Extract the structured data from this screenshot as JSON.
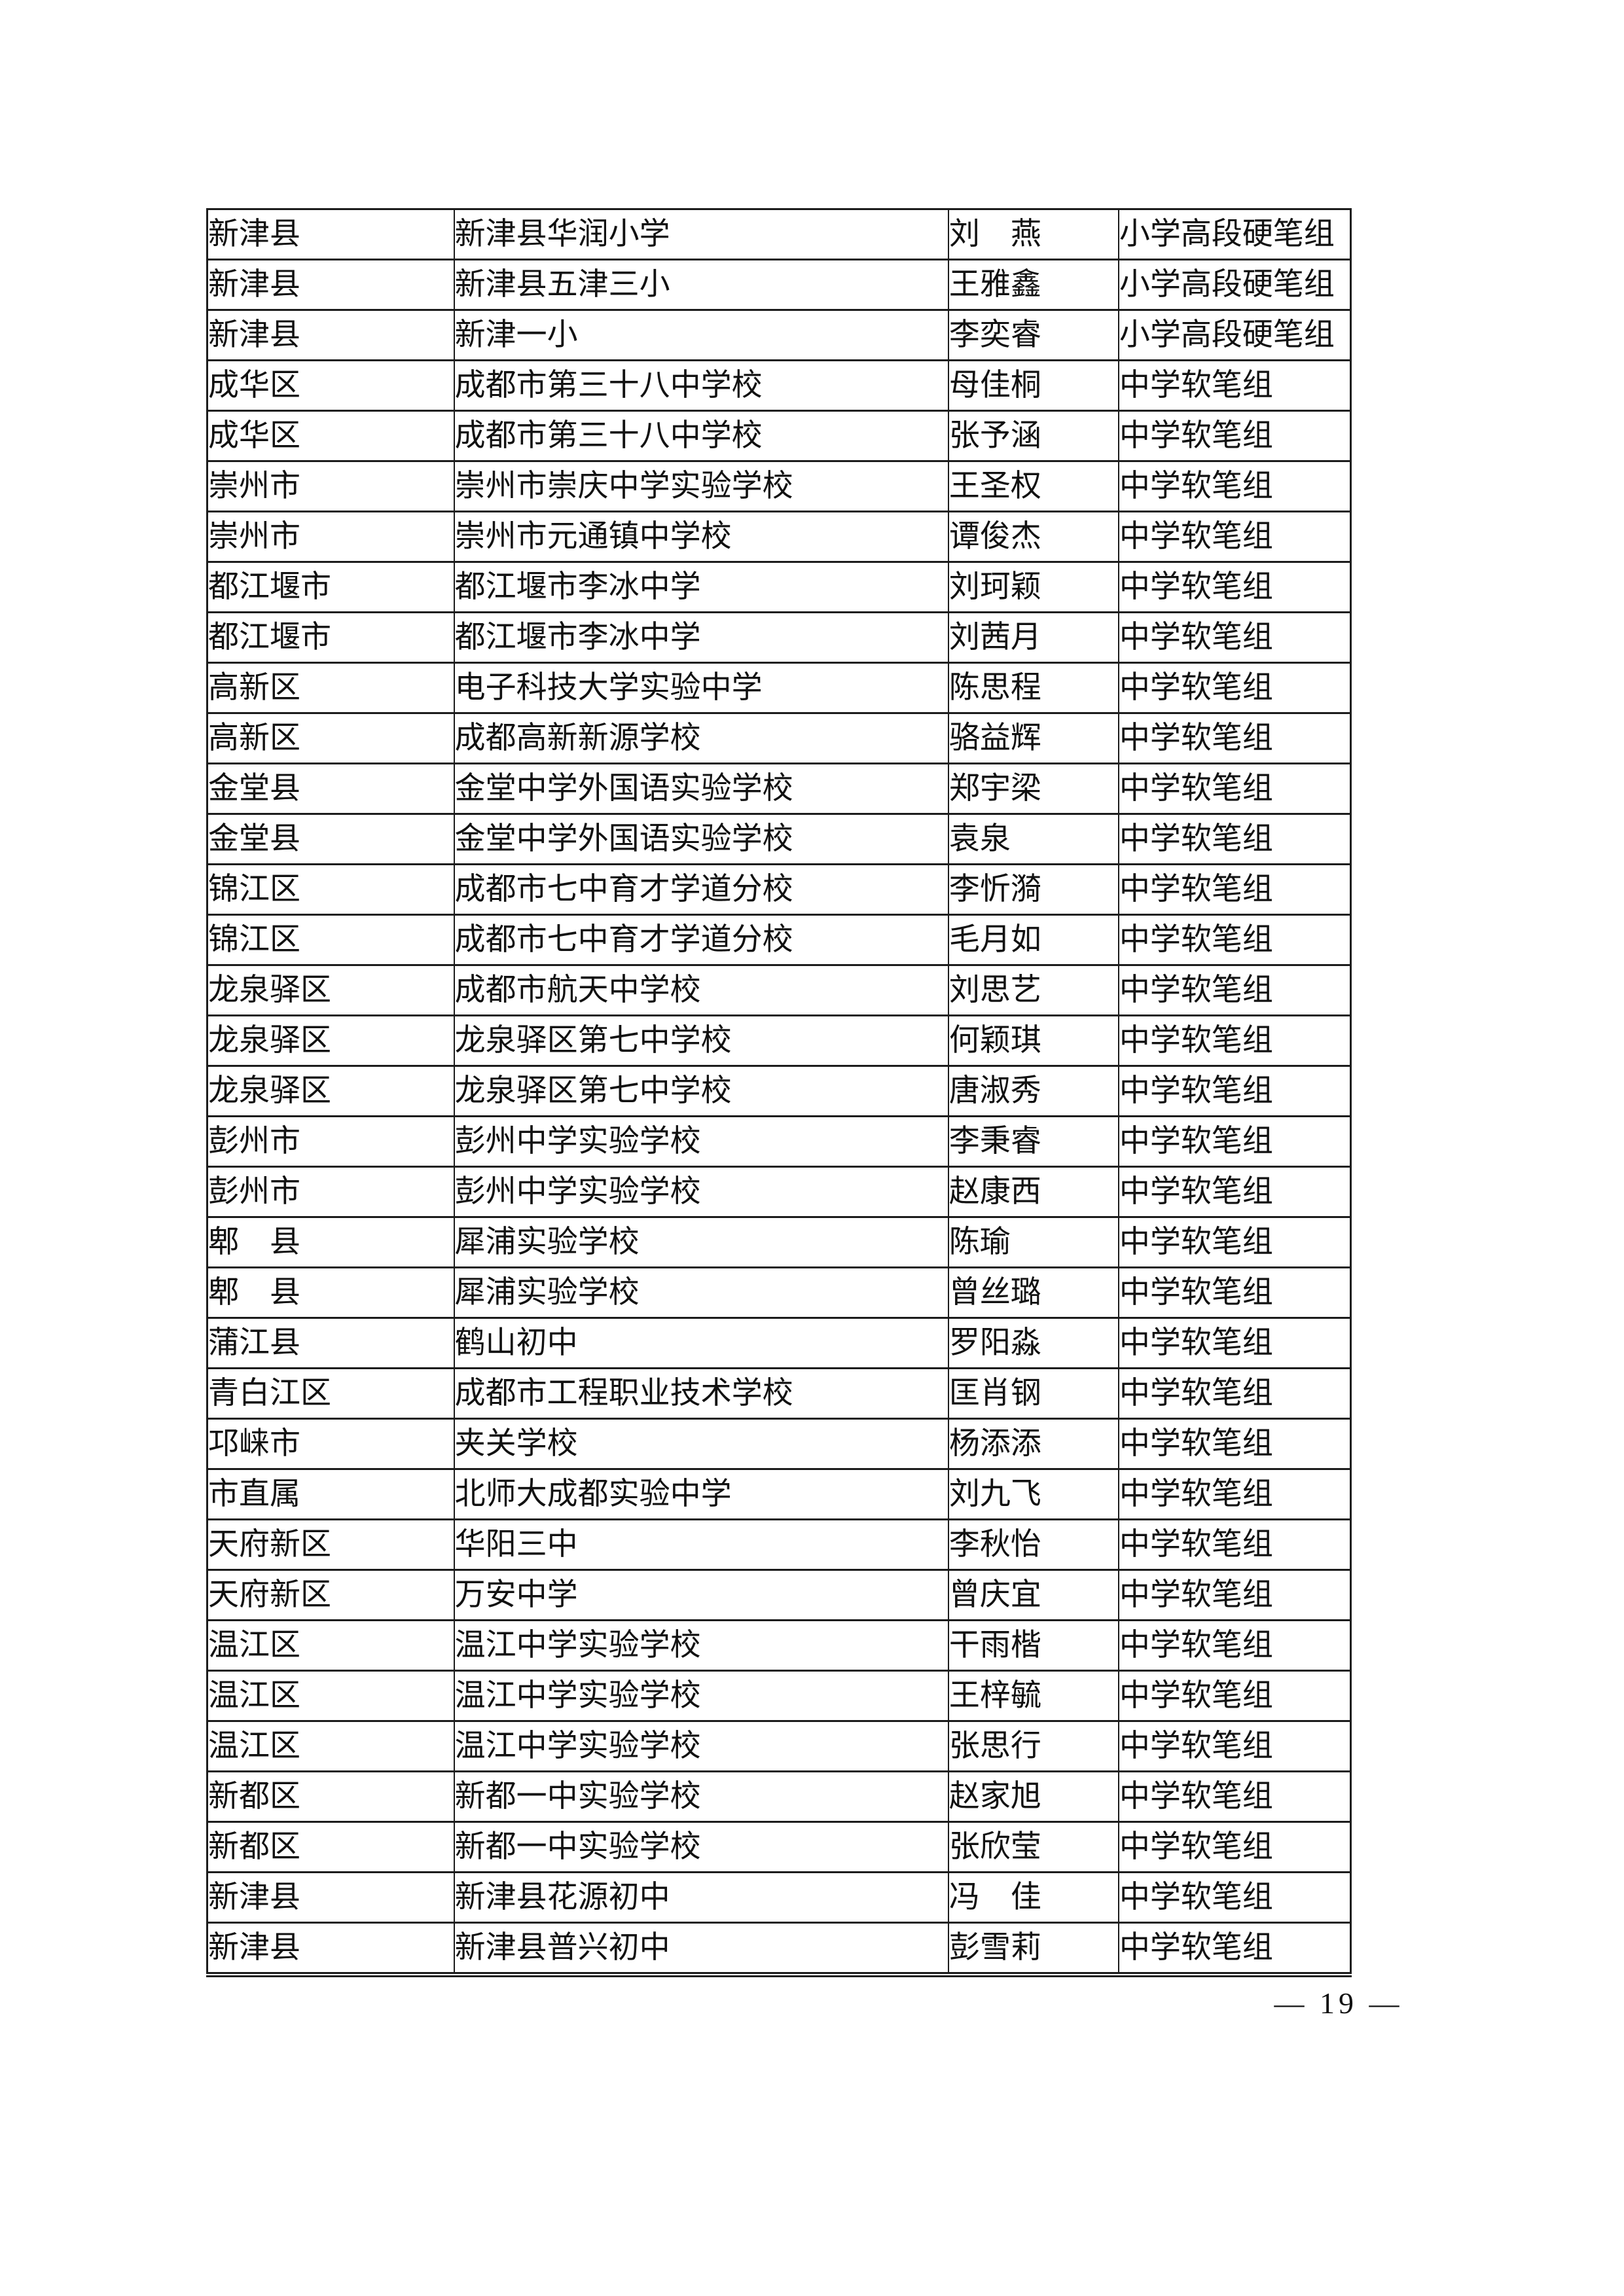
{
  "page_number": "— 19 —",
  "table": {
    "columns": [
      "district",
      "school",
      "name",
      "group"
    ],
    "rows": [
      {
        "district": "新津县",
        "school": "新津县华润小学",
        "name": "刘　燕",
        "group": "小学高段硬笔组"
      },
      {
        "district": "新津县",
        "school": "新津县五津三小",
        "name": "王雅鑫",
        "group": "小学高段硬笔组"
      },
      {
        "district": "新津县",
        "school": "新津一小",
        "name": "李奕睿",
        "group": "小学高段硬笔组"
      },
      {
        "district": "成华区",
        "school": "成都市第三十八中学校",
        "name": "母佳桐",
        "group": "中学软笔组"
      },
      {
        "district": "成华区",
        "school": "成都市第三十八中学校",
        "name": "张予涵",
        "group": "中学软笔组"
      },
      {
        "district": "崇州市",
        "school": "崇州市崇庆中学实验学校",
        "name": "王圣权",
        "group": "中学软笔组"
      },
      {
        "district": "崇州市",
        "school": "崇州市元通镇中学校",
        "name": "谭俊杰",
        "group": "中学软笔组"
      },
      {
        "district": "都江堰市",
        "school": "都江堰市李冰中学",
        "name": "刘珂颖",
        "group": "中学软笔组"
      },
      {
        "district": "都江堰市",
        "school": "都江堰市李冰中学",
        "name": "刘茜月",
        "group": "中学软笔组"
      },
      {
        "district": "高新区",
        "school": "电子科技大学实验中学",
        "name": "陈思程",
        "group": "中学软笔组"
      },
      {
        "district": "高新区",
        "school": "成都高新新源学校",
        "name": "骆益辉",
        "group": "中学软笔组"
      },
      {
        "district": "金堂县",
        "school": "金堂中学外国语实验学校",
        "name": "郑宇梁",
        "group": "中学软笔组"
      },
      {
        "district": "金堂县",
        "school": "金堂中学外国语实验学校",
        "name": "袁泉",
        "group": "中学软笔组"
      },
      {
        "district": "锦江区",
        "school": "成都市七中育才学道分校",
        "name": "李忻漪",
        "group": "中学软笔组"
      },
      {
        "district": "锦江区",
        "school": "成都市七中育才学道分校",
        "name": "毛月如",
        "group": "中学软笔组"
      },
      {
        "district": "龙泉驿区",
        "school": "成都市航天中学校",
        "name": "刘思艺",
        "group": "中学软笔组"
      },
      {
        "district": "龙泉驿区",
        "school": "龙泉驿区第七中学校",
        "name": "何颖琪",
        "group": "中学软笔组"
      },
      {
        "district": "龙泉驿区",
        "school": "龙泉驿区第七中学校",
        "name": "唐淑秀",
        "group": "中学软笔组"
      },
      {
        "district": "彭州市",
        "school": "彭州中学实验学校",
        "name": "李秉睿",
        "group": "中学软笔组"
      },
      {
        "district": "彭州市",
        "school": "彭州中学实验学校",
        "name": "赵康西",
        "group": "中学软笔组"
      },
      {
        "district": "郫　县",
        "school": "犀浦实验学校",
        "name": "陈瑜",
        "group": "中学软笔组"
      },
      {
        "district": "郫　县",
        "school": "犀浦实验学校",
        "name": "曾丝璐",
        "group": "中学软笔组"
      },
      {
        "district": "蒲江县",
        "school": "鹤山初中",
        "name": "罗阳淼",
        "group": "中学软笔组"
      },
      {
        "district": "青白江区",
        "school": "成都市工程职业技术学校",
        "name": "匡肖钢",
        "group": "中学软笔组"
      },
      {
        "district": "邛崃市",
        "school": "夹关学校",
        "name": "杨添添",
        "group": "中学软笔组"
      },
      {
        "district": "市直属",
        "school": "北师大成都实验中学",
        "name": "刘九飞",
        "group": "中学软笔组"
      },
      {
        "district": "天府新区",
        "school": "华阳三中",
        "name": "李秋怡",
        "group": "中学软笔组"
      },
      {
        "district": "天府新区",
        "school": "万安中学",
        "name": "曾庆宜",
        "group": "中学软笔组"
      },
      {
        "district": "温江区",
        "school": "温江中学实验学校",
        "name": "干雨楷",
        "group": "中学软笔组"
      },
      {
        "district": "温江区",
        "school": "温江中学实验学校",
        "name": "王梓毓",
        "group": "中学软笔组"
      },
      {
        "district": "温江区",
        "school": "温江中学实验学校",
        "name": "张思行",
        "group": "中学软笔组"
      },
      {
        "district": "新都区",
        "school": "新都一中实验学校",
        "name": "赵家旭",
        "group": "中学软笔组"
      },
      {
        "district": "新都区",
        "school": "新都一中实验学校",
        "name": "张欣莹",
        "group": "中学软笔组"
      },
      {
        "district": "新津县",
        "school": "新津县花源初中",
        "name": "冯　佳",
        "group": "中学软笔组"
      },
      {
        "district": "新津县",
        "school": "新津县普兴初中",
        "name": "彭雪莉",
        "group": "中学软笔组"
      }
    ]
  }
}
